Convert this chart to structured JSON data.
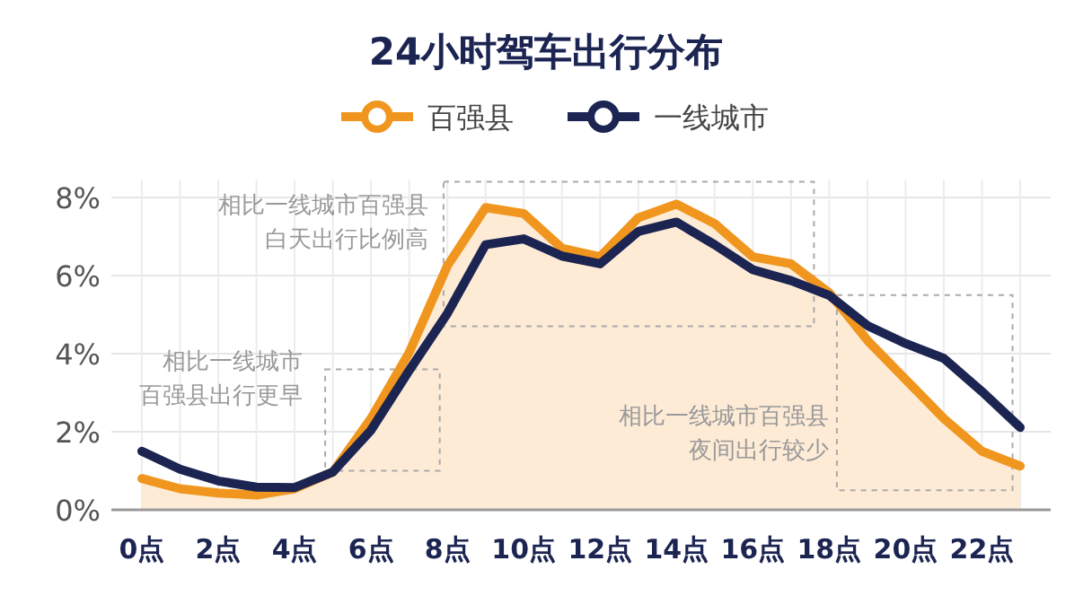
{
  "chart_data": {
    "type": "line",
    "title": "24小时驾车出行分布",
    "categories": [
      "0点",
      null,
      "2点",
      null,
      "4点",
      null,
      "6点",
      null,
      "8点",
      null,
      "10点",
      null,
      "12点",
      null,
      "14点",
      null,
      "16点",
      null,
      "18点",
      null,
      "20点",
      null,
      "22点",
      null
    ],
    "series": [
      {
        "name": "百强县",
        "type": "area",
        "color": "#f0961e",
        "values": [
          0.8,
          0.54,
          0.43,
          0.38,
          0.54,
          0.97,
          2.34,
          4.03,
          6.25,
          7.74,
          7.59,
          6.7,
          6.48,
          7.48,
          7.83,
          7.33,
          6.48,
          6.3,
          5.56,
          4.34,
          3.34,
          2.34,
          1.5,
          1.12
        ]
      },
      {
        "name": "一线城市",
        "color": "#1c2452",
        "values": [
          1.5,
          1.04,
          0.74,
          0.58,
          0.57,
          0.97,
          2.04,
          3.57,
          5.03,
          6.79,
          6.94,
          6.5,
          6.3,
          7.13,
          7.37,
          6.79,
          6.15,
          5.87,
          5.49,
          4.72,
          4.26,
          3.88,
          3.03,
          2.11
        ]
      }
    ],
    "ylim": [
      0,
      8
    ],
    "yticks": [
      {
        "value": 0,
        "label": "0%"
      },
      {
        "value": 2,
        "label": "2%"
      },
      {
        "value": 4,
        "label": "4%"
      },
      {
        "value": 6,
        "label": "6%"
      },
      {
        "value": 8,
        "label": "8%"
      }
    ],
    "grid": true,
    "legend": "top",
    "annotations": [
      "相比一线城市百强县",
      "白天出行比例高",
      "相比一线城市",
      "百强县出行更早",
      "相比一线城市百强县",
      "夜间出行较少"
    ]
  }
}
